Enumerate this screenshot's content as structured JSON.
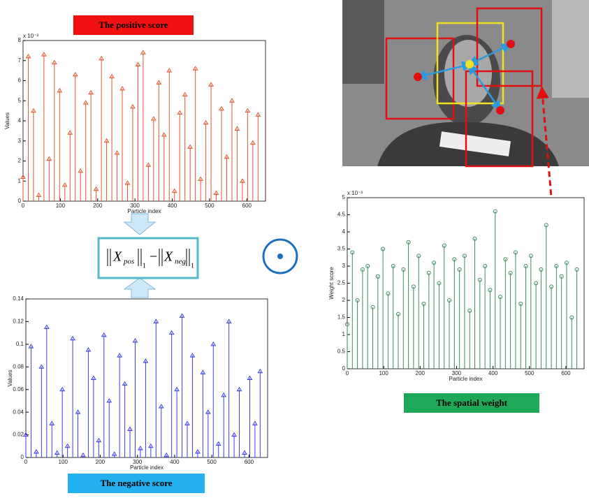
{
  "chart_data": [
    {
      "type": "stem",
      "title": "The positive score",
      "xlabel": "Particle index",
      "ylabel": "Values",
      "y_multiplier": "x 10⁻³",
      "marker": "triangle",
      "color": "#e0552f",
      "xlim": [
        0,
        650
      ],
      "xticks": [
        0,
        100,
        200,
        300,
        400,
        500,
        600
      ],
      "ylim": [
        0,
        8
      ],
      "yticks": [
        0,
        1,
        2,
        3,
        4,
        5,
        6,
        7,
        8
      ],
      "x": [
        0,
        14,
        28,
        42,
        56,
        70,
        84,
        98,
        112,
        126,
        140,
        154,
        168,
        182,
        196,
        210,
        224,
        238,
        252,
        266,
        280,
        294,
        308,
        322,
        336,
        350,
        364,
        378,
        392,
        406,
        420,
        434,
        448,
        462,
        476,
        490,
        504,
        518,
        532,
        546,
        560,
        574,
        588,
        602,
        616,
        630
      ],
      "values": [
        1.2,
        7.2,
        4.5,
        0.3,
        7.3,
        2.1,
        6.9,
        5.5,
        0.8,
        3.4,
        6.3,
        1.5,
        4.9,
        5.4,
        0.6,
        7.1,
        3.0,
        6.2,
        2.4,
        5.6,
        0.9,
        4.7,
        6.8,
        7.4,
        1.8,
        4.1,
        5.9,
        3.3,
        6.5,
        0.5,
        4.4,
        5.3,
        2.7,
        6.6,
        1.1,
        3.9,
        5.8,
        0.4,
        4.6,
        2.2,
        5.0,
        3.6,
        1.0,
        4.5,
        2.9,
        4.3
      ]
    },
    {
      "type": "stem",
      "title": "The negative score",
      "xlabel": "Particle index",
      "ylabel": "Values",
      "marker": "triangle",
      "color": "#3a3fe6",
      "xlim": [
        0,
        650
      ],
      "xticks": [
        0,
        100,
        200,
        300,
        400,
        500,
        600
      ],
      "ylim": [
        0,
        0.14
      ],
      "yticks": [
        0,
        0.02,
        0.04,
        0.06,
        0.08,
        0.1,
        0.12,
        0.14
      ],
      "x": [
        0,
        14,
        28,
        42,
        56,
        70,
        84,
        98,
        112,
        126,
        140,
        154,
        168,
        182,
        196,
        210,
        224,
        238,
        252,
        266,
        280,
        294,
        308,
        322,
        336,
        350,
        364,
        378,
        392,
        406,
        420,
        434,
        448,
        462,
        476,
        490,
        504,
        518,
        532,
        546,
        560,
        574,
        588,
        602,
        616,
        630
      ],
      "values": [
        0.02,
        0.098,
        0.005,
        0.08,
        0.115,
        0.03,
        0.004,
        0.06,
        0.01,
        0.105,
        0.04,
        0.002,
        0.095,
        0.07,
        0.015,
        0.108,
        0.05,
        0.003,
        0.09,
        0.065,
        0.025,
        0.103,
        0.008,
        0.085,
        0.01,
        0.12,
        0.045,
        0.002,
        0.11,
        0.06,
        0.125,
        0.03,
        0.09,
        0.005,
        0.075,
        0.04,
        0.1,
        0.012,
        0.055,
        0.12,
        0.02,
        0.06,
        0.004,
        0.07,
        0.03,
        0.076
      ]
    },
    {
      "type": "stem",
      "title": "The spatial weight",
      "xlabel": "Particle index",
      "ylabel": "Weight score",
      "y_multiplier": "x 10⁻³",
      "marker": "circle",
      "color": "#3c8a5e",
      "xlim": [
        0,
        650
      ],
      "xticks": [
        0,
        100,
        200,
        300,
        400,
        500,
        600
      ],
      "ylim": [
        0,
        5
      ],
      "yticks": [
        0,
        0.5,
        1,
        1.5,
        2,
        2.5,
        3,
        3.5,
        4,
        4.5,
        5
      ],
      "x": [
        0,
        14,
        28,
        42,
        56,
        70,
        84,
        98,
        112,
        126,
        140,
        154,
        168,
        182,
        196,
        210,
        224,
        238,
        252,
        266,
        280,
        294,
        308,
        322,
        336,
        350,
        364,
        378,
        392,
        406,
        420,
        434,
        448,
        462,
        476,
        490,
        504,
        518,
        532,
        546,
        560,
        574,
        588,
        602,
        616,
        630
      ],
      "values": [
        1.3,
        3.4,
        2.0,
        2.9,
        3.0,
        1.8,
        2.7,
        3.5,
        2.2,
        3.0,
        1.6,
        2.9,
        3.7,
        2.4,
        3.3,
        1.9,
        2.8,
        3.1,
        2.5,
        3.6,
        2.0,
        3.2,
        2.9,
        3.3,
        1.7,
        3.8,
        2.6,
        3.0,
        2.3,
        4.6,
        2.1,
        3.2,
        2.8,
        3.4,
        1.9,
        3.0,
        3.3,
        2.5,
        2.9,
        4.2,
        2.4,
        3.0,
        2.7,
        3.1,
        1.5,
        2.9
      ]
    }
  ],
  "formula": {
    "pos": "X",
    "pos_sub": "pos",
    "norm_sub": "1",
    "minus": "−",
    "neg": "X",
    "neg_sub": "neg"
  }
}
